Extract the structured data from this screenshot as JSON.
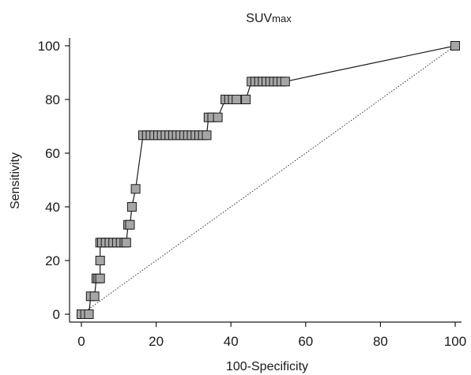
{
  "chart_data": {
    "type": "line",
    "title": "SUVmax",
    "title_main": "SUV",
    "title_sub": "max",
    "xlabel": "100-Specificity",
    "ylabel": "Sensitivity",
    "xlim": [
      0,
      100
    ],
    "ylim": [
      0,
      100
    ],
    "xticks": [
      "0",
      "20",
      "40",
      "60",
      "80",
      "100"
    ],
    "yticks": [
      "0",
      "20",
      "40",
      "60",
      "80",
      "100"
    ],
    "grid": false,
    "colors": {
      "marker_fill": "#a6a6a6",
      "line": "#1a1a1a",
      "reference": "#333333"
    },
    "reference_line": [
      [
        0,
        0
      ],
      [
        100,
        100
      ]
    ],
    "series": [
      {
        "x": [
          0,
          1,
          2,
          2.5,
          3.5,
          4,
          4.5,
          5,
          5,
          5,
          5.5,
          6.5,
          7.5,
          8.5,
          9.5,
          10.5,
          11.5,
          12,
          12.5,
          13,
          13.5,
          14.5,
          16.5,
          17.5,
          18.5,
          19.5,
          20.5,
          21.5,
          22.5,
          23.5,
          24.5,
          25.5,
          26.5,
          27.5,
          28.5,
          29.5,
          30.5,
          31.5,
          32.5,
          33.5,
          34,
          35,
          36.5,
          38.5,
          39.5,
          40.5,
          41.5,
          44,
          45.5,
          46.5,
          47.5,
          48.5,
          49.5,
          50.5,
          51.5,
          52.5,
          53.5,
          54.5,
          100
        ],
        "y": [
          0,
          0,
          0,
          6.67,
          6.67,
          13.33,
          13.33,
          13.33,
          20,
          26.67,
          26.67,
          26.67,
          26.67,
          26.67,
          26.67,
          26.67,
          26.67,
          26.67,
          33.33,
          33.33,
          40,
          46.67,
          66.67,
          66.67,
          66.67,
          66.67,
          66.67,
          66.67,
          66.67,
          66.67,
          66.67,
          66.67,
          66.67,
          66.67,
          66.67,
          66.67,
          66.67,
          66.67,
          66.67,
          66.67,
          73.33,
          73.33,
          73.33,
          80,
          80,
          80,
          80,
          80,
          86.67,
          86.67,
          86.67,
          86.67,
          86.67,
          86.67,
          86.67,
          86.67,
          86.67,
          86.67,
          100
        ]
      }
    ]
  }
}
